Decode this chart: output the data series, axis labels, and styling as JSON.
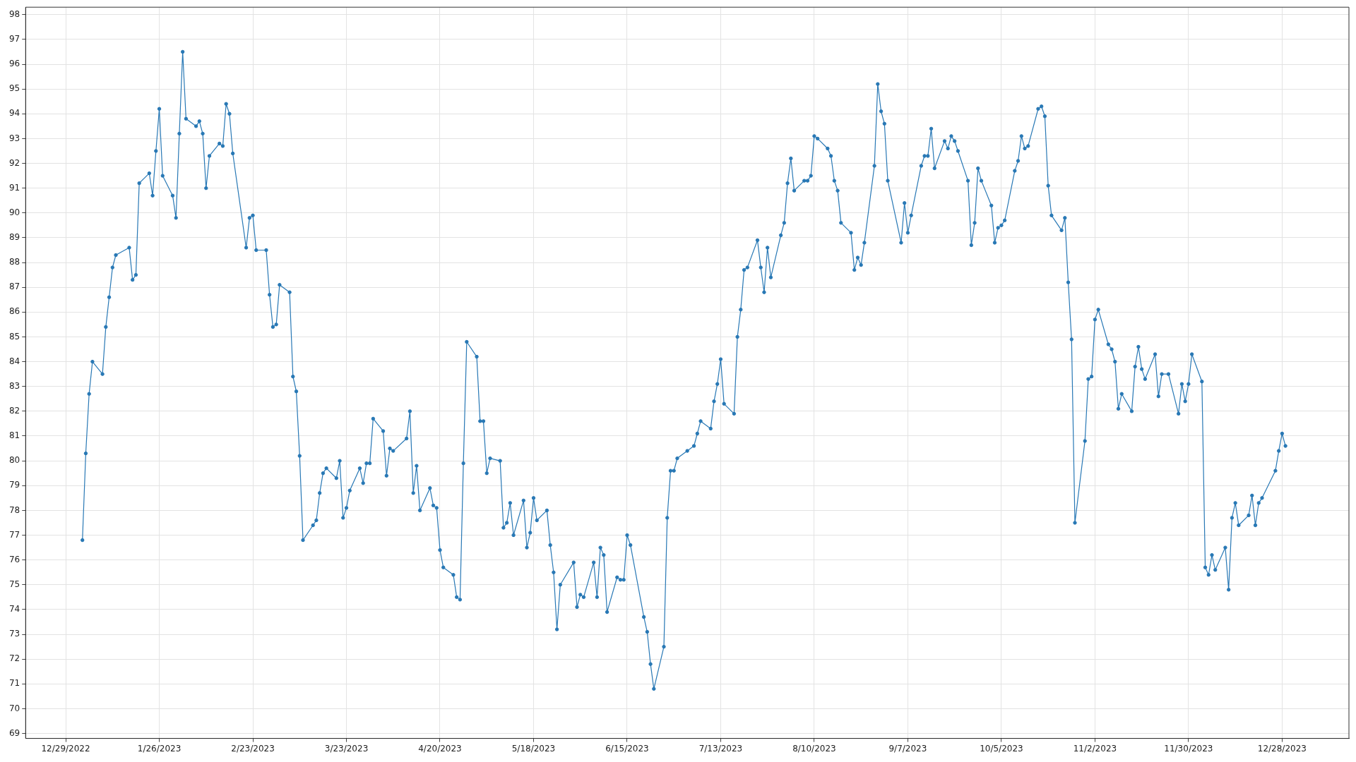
{
  "chart_data": {
    "type": "line",
    "color": "#2878b5",
    "marker": "circle",
    "line_style": "solid",
    "grid": true,
    "legend": false,
    "xlim": [
      "2022-12-17",
      "2024-01-17"
    ],
    "xticks": [
      {
        "value": "2022-12-29",
        "label": "12/29/2022"
      },
      {
        "value": "2023-01-26",
        "label": "1/26/2023"
      },
      {
        "value": "2023-02-23",
        "label": "2/23/2023"
      },
      {
        "value": "2023-03-23",
        "label": "3/23/2023"
      },
      {
        "value": "2023-04-20",
        "label": "4/20/2023"
      },
      {
        "value": "2023-05-18",
        "label": "5/18/2023"
      },
      {
        "value": "2023-06-15",
        "label": "6/15/2023"
      },
      {
        "value": "2023-07-13",
        "label": "7/13/2023"
      },
      {
        "value": "2023-08-10",
        "label": "8/10/2023"
      },
      {
        "value": "2023-09-07",
        "label": "9/7/2023"
      },
      {
        "value": "2023-10-05",
        "label": "10/5/2023"
      },
      {
        "value": "2023-11-02",
        "label": "11/2/2023"
      },
      {
        "value": "2023-11-30",
        "label": "11/30/2023"
      },
      {
        "value": "2023-12-28",
        "label": "12/28/2023"
      }
    ],
    "ylim": [
      68.8,
      98.3
    ],
    "yticks": [
      69,
      70,
      71,
      72,
      73,
      74,
      75,
      76,
      77,
      78,
      79,
      80,
      81,
      82,
      83,
      84,
      85,
      86,
      87,
      88,
      89,
      90,
      91,
      92,
      93,
      94,
      95,
      96,
      97,
      98
    ],
    "x": [
      "2023-01-03",
      "2023-01-04",
      "2023-01-05",
      "2023-01-06",
      "2023-01-09",
      "2023-01-10",
      "2023-01-11",
      "2023-01-12",
      "2023-01-13",
      "2023-01-17",
      "2023-01-18",
      "2023-01-19",
      "2023-01-20",
      "2023-01-23",
      "2023-01-24",
      "2023-01-25",
      "2023-01-26",
      "2023-01-27",
      "2023-01-30",
      "2023-01-31",
      "2023-02-01",
      "2023-02-02",
      "2023-02-03",
      "2023-02-06",
      "2023-02-07",
      "2023-02-08",
      "2023-02-09",
      "2023-02-10",
      "2023-02-13",
      "2023-02-14",
      "2023-02-15",
      "2023-02-16",
      "2023-02-17",
      "2023-02-21",
      "2023-02-22",
      "2023-02-23",
      "2023-02-24",
      "2023-02-27",
      "2023-02-28",
      "2023-03-01",
      "2023-03-02",
      "2023-03-03",
      "2023-03-06",
      "2023-03-07",
      "2023-03-08",
      "2023-03-09",
      "2023-03-10",
      "2023-03-13",
      "2023-03-14",
      "2023-03-15",
      "2023-03-16",
      "2023-03-17",
      "2023-03-20",
      "2023-03-21",
      "2023-03-22",
      "2023-03-23",
      "2023-03-24",
      "2023-03-27",
      "2023-03-28",
      "2023-03-29",
      "2023-03-30",
      "2023-03-31",
      "2023-04-03",
      "2023-04-04",
      "2023-04-05",
      "2023-04-06",
      "2023-04-10",
      "2023-04-11",
      "2023-04-12",
      "2023-04-13",
      "2023-04-14",
      "2023-04-17",
      "2023-04-18",
      "2023-04-19",
      "2023-04-20",
      "2023-04-21",
      "2023-04-24",
      "2023-04-25",
      "2023-04-26",
      "2023-04-27",
      "2023-04-28",
      "2023-05-01",
      "2023-05-02",
      "2023-05-03",
      "2023-05-04",
      "2023-05-05",
      "2023-05-08",
      "2023-05-09",
      "2023-05-10",
      "2023-05-11",
      "2023-05-12",
      "2023-05-15",
      "2023-05-16",
      "2023-05-17",
      "2023-05-18",
      "2023-05-19",
      "2023-05-22",
      "2023-05-23",
      "2023-05-24",
      "2023-05-25",
      "2023-05-26",
      "2023-05-30",
      "2023-05-31",
      "2023-06-01",
      "2023-06-02",
      "2023-06-05",
      "2023-06-06",
      "2023-06-07",
      "2023-06-08",
      "2023-06-09",
      "2023-06-12",
      "2023-06-13",
      "2023-06-14",
      "2023-06-15",
      "2023-06-16",
      "2023-06-20",
      "2023-06-21",
      "2023-06-22",
      "2023-06-23",
      "2023-06-26",
      "2023-06-27",
      "2023-06-28",
      "2023-06-29",
      "2023-06-30",
      "2023-07-03",
      "2023-07-05",
      "2023-07-06",
      "2023-07-07",
      "2023-07-10",
      "2023-07-11",
      "2023-07-12",
      "2023-07-13",
      "2023-07-14",
      "2023-07-17",
      "2023-07-18",
      "2023-07-19",
      "2023-07-20",
      "2023-07-21",
      "2023-07-24",
      "2023-07-25",
      "2023-07-26",
      "2023-07-27",
      "2023-07-28",
      "2023-07-31",
      "2023-08-01",
      "2023-08-02",
      "2023-08-03",
      "2023-08-04",
      "2023-08-07",
      "2023-08-08",
      "2023-08-09",
      "2023-08-10",
      "2023-08-11",
      "2023-08-14",
      "2023-08-15",
      "2023-08-16",
      "2023-08-17",
      "2023-08-18",
      "2023-08-21",
      "2023-08-22",
      "2023-08-23",
      "2023-08-24",
      "2023-08-25",
      "2023-08-28",
      "2023-08-29",
      "2023-08-30",
      "2023-08-31",
      "2023-09-01",
      "2023-09-05",
      "2023-09-06",
      "2023-09-07",
      "2023-09-08",
      "2023-09-11",
      "2023-09-12",
      "2023-09-13",
      "2023-09-14",
      "2023-09-15",
      "2023-09-18",
      "2023-09-19",
      "2023-09-20",
      "2023-09-21",
      "2023-09-22",
      "2023-09-25",
      "2023-09-26",
      "2023-09-27",
      "2023-09-28",
      "2023-09-29",
      "2023-10-02",
      "2023-10-03",
      "2023-10-04",
      "2023-10-05",
      "2023-10-06",
      "2023-10-09",
      "2023-10-10",
      "2023-10-11",
      "2023-10-12",
      "2023-10-13",
      "2023-10-16",
      "2023-10-17",
      "2023-10-18",
      "2023-10-19",
      "2023-10-20",
      "2023-10-23",
      "2023-10-24",
      "2023-10-25",
      "2023-10-26",
      "2023-10-27",
      "2023-10-30",
      "2023-10-31",
      "2023-11-01",
      "2023-11-02",
      "2023-11-03",
      "2023-11-06",
      "2023-11-07",
      "2023-11-08",
      "2023-11-09",
      "2023-11-10",
      "2023-11-13",
      "2023-11-14",
      "2023-11-15",
      "2023-11-16",
      "2023-11-17",
      "2023-11-20",
      "2023-11-21",
      "2023-11-22",
      "2023-11-24",
      "2023-11-27",
      "2023-11-28",
      "2023-11-29",
      "2023-11-30",
      "2023-12-01",
      "2023-12-04",
      "2023-12-05",
      "2023-12-06",
      "2023-12-07",
      "2023-12-08",
      "2023-12-11",
      "2023-12-12",
      "2023-12-13",
      "2023-12-14",
      "2023-12-15",
      "2023-12-18",
      "2023-12-19",
      "2023-12-20",
      "2023-12-21",
      "2023-12-22",
      "2023-12-26",
      "2023-12-27",
      "2023-12-28",
      "2023-12-29"
    ],
    "values": [
      76.8,
      80.3,
      82.7,
      84.0,
      83.5,
      85.4,
      86.6,
      87.8,
      88.3,
      88.6,
      87.3,
      87.5,
      91.2,
      91.6,
      90.7,
      92.5,
      94.2,
      91.5,
      90.7,
      89.8,
      93.2,
      96.5,
      93.8,
      93.5,
      93.7,
      93.2,
      91.0,
      92.3,
      92.8,
      92.7,
      94.4,
      94.0,
      92.4,
      88.6,
      89.8,
      89.9,
      88.5,
      88.5,
      86.7,
      85.4,
      85.5,
      87.1,
      86.8,
      83.4,
      82.8,
      80.2,
      76.8,
      77.4,
      77.6,
      78.7,
      79.5,
      79.7,
      79.3,
      80.0,
      77.7,
      78.1,
      78.8,
      79.7,
      79.1,
      79.9,
      79.9,
      81.7,
      81.2,
      79.4,
      80.5,
      80.4,
      80.9,
      82.0,
      78.7,
      79.8,
      78.0,
      78.9,
      78.2,
      78.1,
      76.4,
      75.7,
      75.4,
      74.5,
      74.4,
      79.9,
      84.8,
      84.2,
      81.6,
      81.6,
      79.5,
      80.1,
      80.0,
      77.3,
      77.5,
      78.3,
      77.0,
      78.4,
      76.5,
      77.1,
      78.5,
      77.6,
      78.0,
      76.6,
      75.5,
      73.2,
      75.0,
      75.9,
      74.1,
      74.6,
      74.5,
      75.9,
      74.5,
      76.5,
      76.2,
      73.9,
      75.3,
      75.2,
      75.2,
      77.0,
      76.6,
      73.7,
      73.1,
      71.8,
      70.8,
      72.5,
      77.7,
      79.6,
      79.6,
      80.1,
      80.4,
      80.6,
      81.1,
      81.6,
      81.3,
      82.4,
      83.1,
      84.1,
      82.3,
      81.9,
      85.0,
      86.1,
      87.7,
      87.8,
      88.9,
      87.8,
      86.8,
      88.6,
      87.4,
      89.1,
      89.6,
      91.2,
      92.2,
      90.9,
      91.3,
      91.3,
      91.5,
      93.1,
      93.0,
      92.6,
      92.3,
      91.3,
      90.9,
      89.6,
      89.2,
      87.7,
      88.2,
      87.9,
      88.8,
      91.9,
      95.2,
      94.1,
      93.6,
      91.3,
      88.8,
      90.4,
      89.2,
      89.9,
      91.9,
      92.3,
      92.3,
      93.4,
      91.8,
      92.9,
      92.6,
      93.1,
      92.9,
      92.5,
      91.3,
      88.7,
      89.6,
      91.8,
      91.3,
      90.3,
      88.8,
      89.4,
      89.5,
      89.7,
      91.7,
      92.1,
      93.1,
      92.6,
      92.7,
      94.2,
      94.3,
      93.9,
      91.1,
      89.9,
      89.3,
      89.8,
      87.2,
      84.9,
      77.5,
      80.8,
      83.3,
      83.4,
      85.7,
      86.1,
      84.7,
      84.5,
      84.0,
      82.1,
      82.7,
      82.0,
      83.8,
      84.6,
      83.7,
      83.3,
      84.3,
      82.6,
      83.5,
      83.5,
      81.9,
      83.1,
      82.4,
      83.1,
      84.3,
      83.2,
      75.7,
      75.4,
      76.2,
      75.6,
      76.5,
      74.8,
      77.7,
      78.3,
      77.4,
      77.8,
      78.6,
      77.4,
      78.3,
      78.5,
      79.6,
      80.4,
      81.1,
      80.6
    ]
  }
}
